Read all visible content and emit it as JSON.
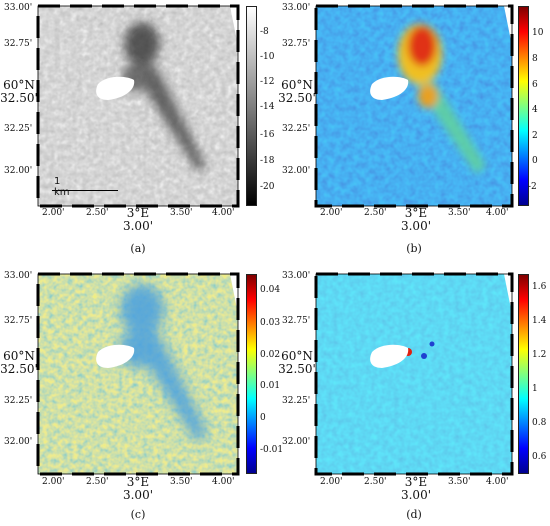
{
  "panels": [
    {
      "id": "a",
      "caption": "(a)",
      "lat_ticks": [
        "33.00'",
        "32.75'",
        "32.50'",
        "32.25'",
        "32.00'"
      ],
      "lon_ticks": [
        "2.00'",
        "2.50'",
        "3.00'",
        "3.50'",
        "4.00'"
      ],
      "lat_label": "60°N",
      "lat_label_sub": "32.50'",
      "lon_label": "3°E",
      "lon_label_sub": "3.00'",
      "colorbar_ticks": [
        "-8",
        "-10",
        "-12",
        "-14",
        "-16",
        "-18",
        "-20"
      ],
      "colormap": "gray",
      "scale_bar": "1 km"
    },
    {
      "id": "b",
      "caption": "(b)",
      "lat_ticks": [
        "33.00'",
        "32.75'",
        "32.50'",
        "32.25'",
        "32.00'"
      ],
      "lon_ticks": [
        "2.00'",
        "2.50'",
        "3.00'",
        "3.50'",
        "4.00'"
      ],
      "lat_label": "60°N",
      "lat_label_sub": "32.50'",
      "lon_label": "3°E",
      "lon_label_sub": "3.00'",
      "colorbar_ticks": [
        "10",
        "8",
        "6",
        "4",
        "2",
        "0",
        "-2"
      ],
      "colormap": "jet"
    },
    {
      "id": "c",
      "caption": "(c)",
      "lat_ticks": [
        "33.00'",
        "32.75'",
        "32.50'",
        "32.25'",
        "32.00'"
      ],
      "lon_ticks": [
        "2.00'",
        "2.50'",
        "3.00'",
        "3.50'",
        "4.00'"
      ],
      "lat_label": "60°N",
      "lat_label_sub": "32.50'",
      "lon_label": "3°E",
      "lon_label_sub": "3.00'",
      "colorbar_ticks": [
        "0.04",
        "0.03",
        "0.02",
        "0.01",
        "0",
        "-0.01"
      ],
      "colormap": "jet"
    },
    {
      "id": "d",
      "caption": "(d)",
      "lat_ticks": [
        "33.00'",
        "32.75'",
        "32.50'",
        "32.25'",
        "32.00'"
      ],
      "lon_ticks": [
        "2.00'",
        "2.50'",
        "3.00'",
        "3.50'",
        "4.00'"
      ],
      "lat_label": "60°N",
      "lat_label_sub": "32.50'",
      "lon_label": "3°E",
      "lon_label_sub": "3.00'",
      "colorbar_ticks": [
        "1.6",
        "1.4",
        "1.2",
        "1",
        "0.8",
        "0.6"
      ],
      "colormap": "jet"
    }
  ]
}
